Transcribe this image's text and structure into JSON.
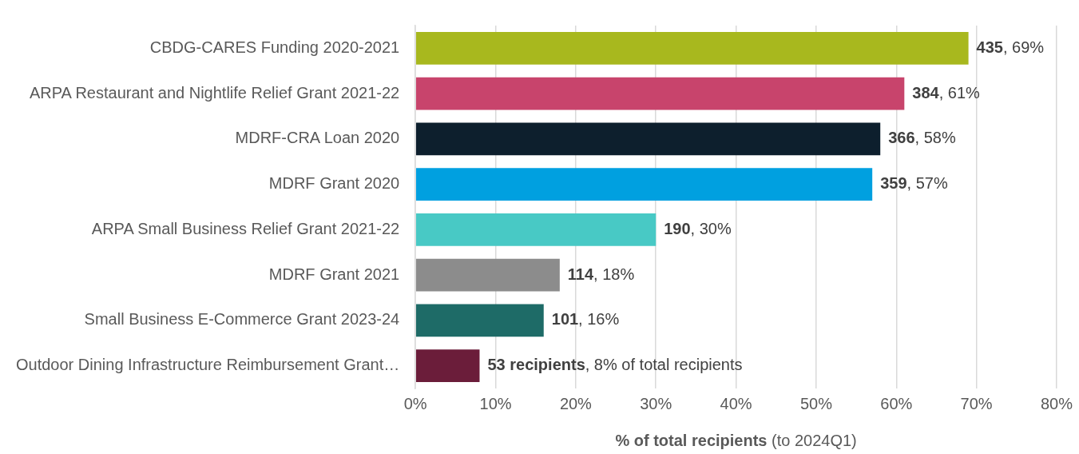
{
  "chart_data": {
    "type": "bar",
    "orientation": "horizontal",
    "xlabel": "% of total recipients (to 2024Q1)",
    "categories": [
      "CBDG-CARES Funding 2020-2021",
      "ARPA Restaurant and Nightlife Relief Grant 2021-22",
      "MDRF-CRA Loan 2020",
      "MDRF Grant 2020",
      "ARPA Small Business Relief Grant 2021-22",
      "MDRF Grant 2021",
      "Small Business E-Commerce Grant 2023-24",
      "Outdoor Dining Infrastructure Reimbursement Grant…"
    ],
    "values": [
      69,
      61,
      58,
      57,
      30,
      18,
      16,
      8
    ],
    "colors": [
      "#a8b81e",
      "#c8446c",
      "#0d1f2d",
      "#00a0e0",
      "#48c9c5",
      "#8c8c8c",
      "#1e6b67",
      "#6b1d3a"
    ],
    "value_labels": [
      "435, 69%",
      "384, 61%",
      "366, 58%",
      "359, 57%",
      "190, 30%",
      "114, 18%",
      "101, 16%",
      "53 recipients, 8% of total recipients"
    ],
    "xlim": [
      0,
      80
    ],
    "xticks": [
      {
        "value": 0,
        "label": "0%"
      },
      {
        "value": 10,
        "label": "10%"
      },
      {
        "value": 20,
        "label": "20%"
      },
      {
        "value": 30,
        "label": "30%"
      },
      {
        "value": 40,
        "label": "40%"
      },
      {
        "value": 50,
        "label": "50%"
      },
      {
        "value": 60,
        "label": "60%"
      },
      {
        "value": 70,
        "label": "70%"
      },
      {
        "value": 80,
        "label": "80%"
      }
    ],
    "grid": "x",
    "legend": false
  }
}
